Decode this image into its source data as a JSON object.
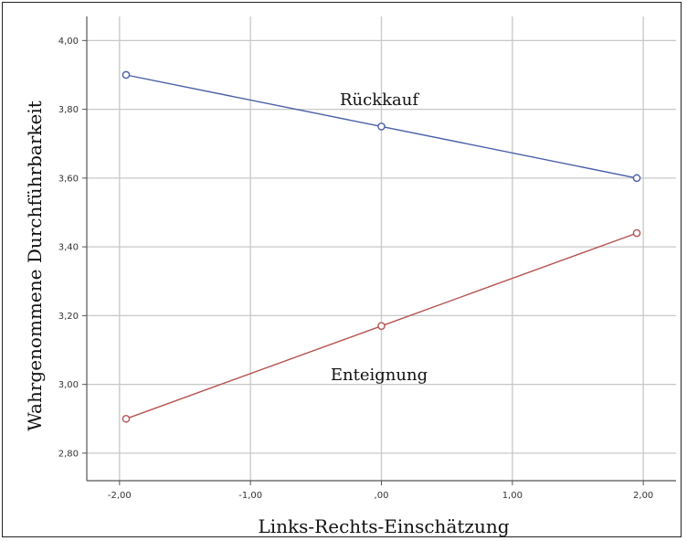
{
  "chart_data": {
    "type": "line",
    "xlabel": "Links-Rechts-Einschätzung",
    "ylabel": "Wahrgenommene Durchführbarkeit",
    "xlim": [
      -2.25,
      2.25
    ],
    "ylim": [
      2.72,
      4.07
    ],
    "x_ticks": [
      -2,
      -1,
      0,
      1,
      2
    ],
    "x_tick_labels": [
      "-2,00",
      "-1,00",
      ",00",
      "1,00",
      "2,00"
    ],
    "y_ticks": [
      2.8,
      3.0,
      3.2,
      3.4,
      3.6,
      3.8,
      4.0
    ],
    "y_tick_labels": [
      "2,80",
      "3,00",
      "3,20",
      "3,40",
      "3,60",
      "3,80",
      "4,00"
    ],
    "grid": true,
    "series": [
      {
        "name": "Rückkauf",
        "color": "#4a5fa6",
        "x": [
          -1.95,
          0.0,
          1.95
        ],
        "y": [
          3.9,
          3.75,
          3.6
        ]
      },
      {
        "name": "Enteignung",
        "color": "#b5534f",
        "x": [
          -1.95,
          0.0,
          1.95
        ],
        "y": [
          2.9,
          3.17,
          3.44
        ]
      }
    ]
  }
}
